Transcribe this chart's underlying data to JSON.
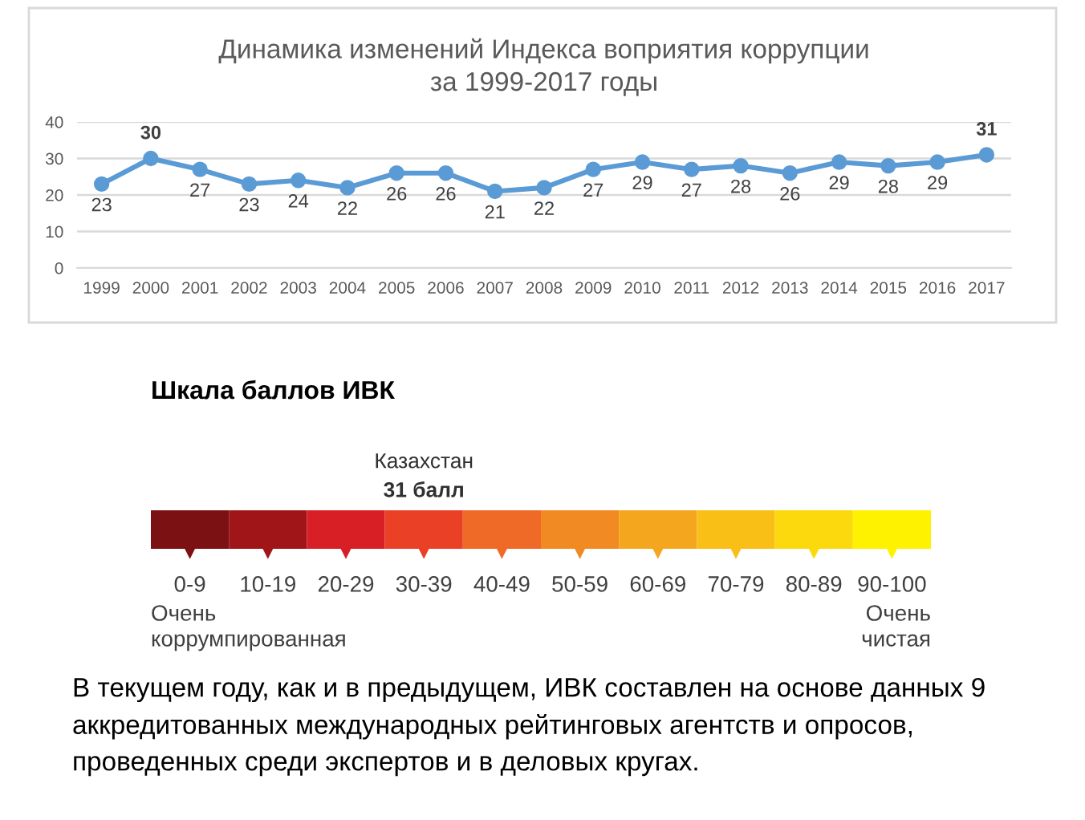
{
  "chart_data": [
    {
      "type": "line",
      "title": "Динамика изменений Индекса воприятия коррупции\nза 1999-2017 годы",
      "categories": [
        "1999",
        "2000",
        "2001",
        "2002",
        "2003",
        "2004",
        "2005",
        "2006",
        "2007",
        "2008",
        "2009",
        "2010",
        "2011",
        "2012",
        "2013",
        "2014",
        "2015",
        "2016",
        "2017"
      ],
      "series": [
        {
          "color": "#5b9bd5",
          "values": [
            23,
            30,
            27,
            23,
            24,
            22,
            26,
            26,
            21,
            22,
            27,
            29,
            27,
            28,
            26,
            29,
            28,
            29,
            31
          ]
        }
      ],
      "ylim": [
        0,
        40
      ],
      "yticks": [
        0,
        10,
        20,
        30,
        40
      ],
      "grid": "y",
      "marker": "circle",
      "line_style": "solid",
      "data_labels": true
    },
    {
      "type": "other",
      "title": "Шкала баллов ИВК",
      "categories": [
        "0-9",
        "10-19",
        "20-29",
        "30-39",
        "40-49",
        "50-59",
        "60-69",
        "70-79",
        "80-89",
        "90-100"
      ],
      "colors": [
        "#7b1113",
        "#a01618",
        "#d81f26",
        "#ea4025",
        "#ef6a27",
        "#f28a24",
        "#f5a61f",
        "#f9bf17",
        "#fcd90c",
        "#fff200"
      ],
      "annotations": [
        {
          "text": "Казахстан\n31 балл",
          "x": "30-39"
        },
        {
          "text": "Очень\nкоррумпированная",
          "x": "0-9"
        },
        {
          "text": "Очень\nчистая",
          "x": "90-100"
        },
        "В текущем году, как и в предыдущем, ИВК составлен на основе данных 9 аккредитованных международных рейтинговых агентств и опросов, проведенных среди экспертов и в деловых кругах."
      ]
    }
  ]
}
